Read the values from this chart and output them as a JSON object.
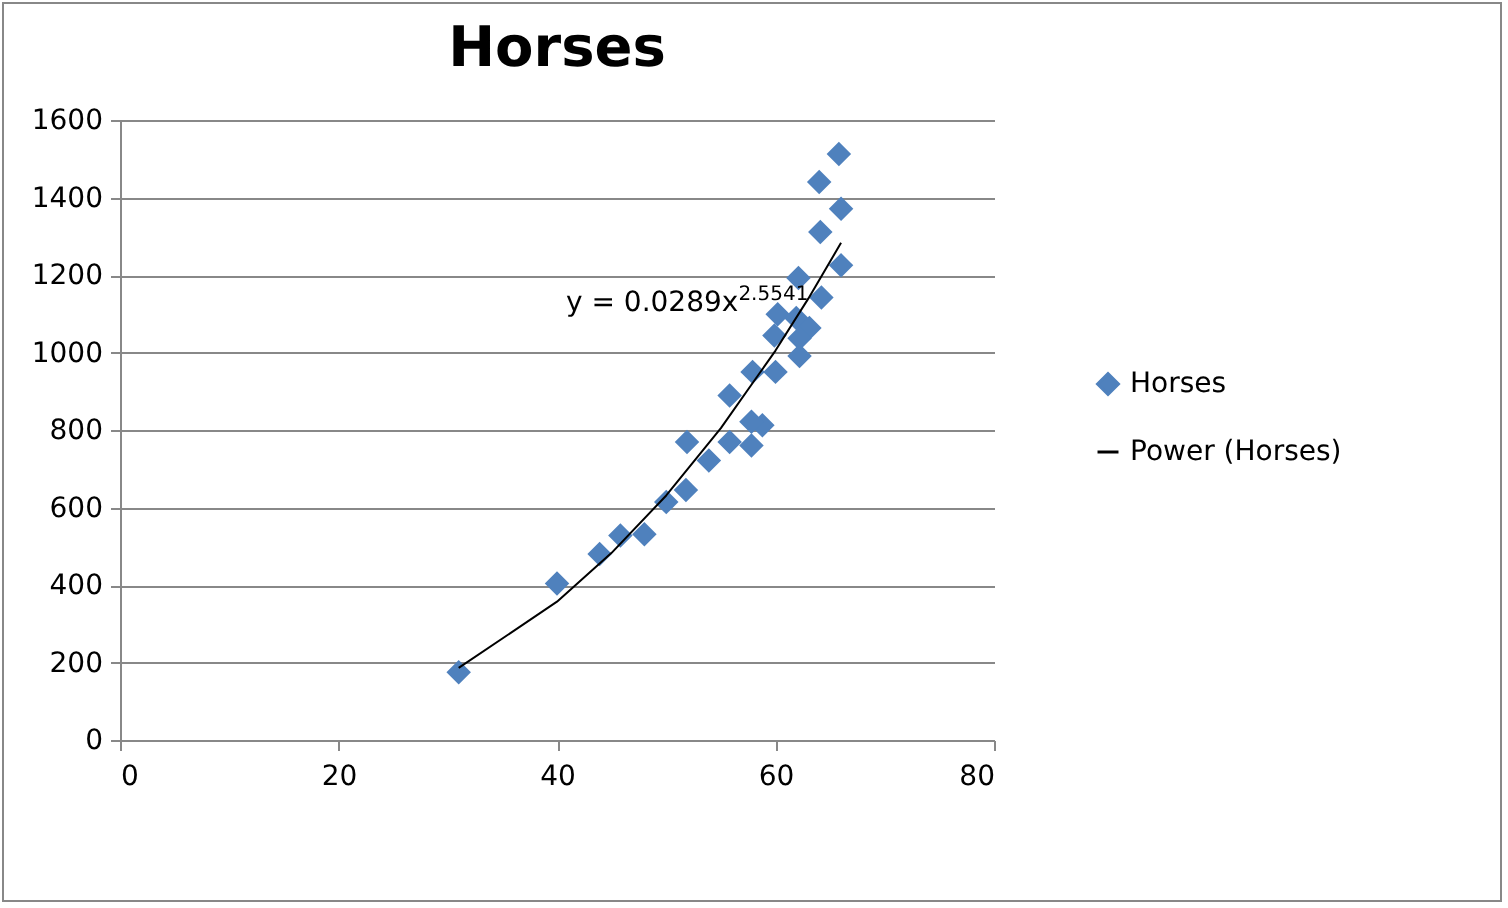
{
  "chart_data": {
    "type": "scatter",
    "title": "Horses",
    "annotations": [
      "y = 0.0289x$^{2.5541}$"
    ],
    "xlim": [
      0,
      80
    ],
    "xticks": [
      0,
      20,
      40,
      60,
      80
    ],
    "ylim": [
      0,
      1600
    ],
    "yticks": [
      0,
      200,
      400,
      600,
      800,
      1000,
      1200,
      1400,
      1600
    ],
    "grid": "y",
    "legend": "right",
    "marker": "diamond",
    "series": [
      {
        "name": "Horses",
        "color": "#4f81bd",
        "x": [
          31,
          40,
          43.9,
          45.8,
          48,
          50,
          51.8,
          51.9,
          53.9,
          55.8,
          57.8,
          58.8,
          57.8,
          55.8,
          57.9,
          60,
          62.2,
          60.2,
          61.9,
          63.1,
          59.9,
          62.2,
          62.1,
          64.2,
          66,
          64.1,
          66,
          64,
          65.8
        ],
        "values": [
          175,
          404,
          480,
          528,
          531,
          614,
          645,
          769,
          721,
          769,
          760,
          812,
          821,
          889,
          950,
          950,
          991,
          1099,
          1089,
          1063,
          1044,
          1037,
          1192,
          1142,
          1225,
          1311,
          1371,
          1440,
          1512
        ]
      },
      {
        "name": "Power (Horses)",
        "type": "line",
        "color": "#000000",
        "line_style": "solid",
        "marker": "none",
        "x": [
          31,
          40,
          45,
          50,
          55,
          60,
          63,
          66
        ],
        "values": [
          186,
          357,
          483,
          631,
          805,
          1005,
          1139,
          1283
        ]
      }
    ]
  }
}
